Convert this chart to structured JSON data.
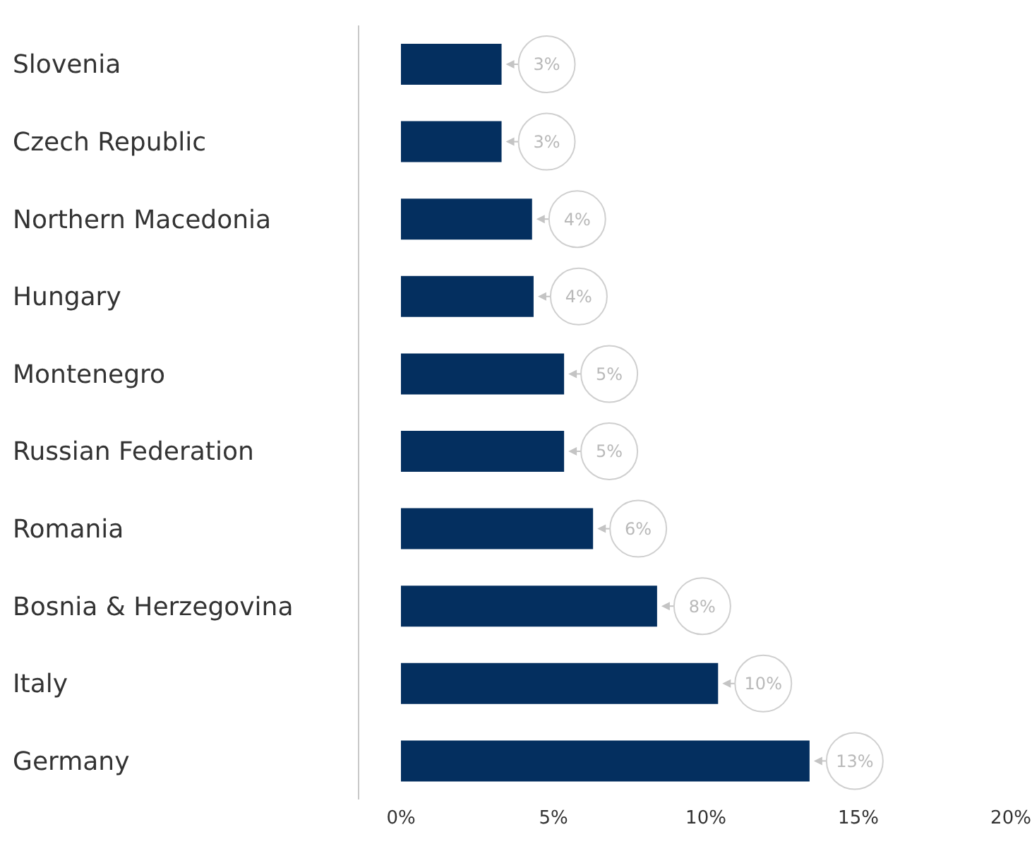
{
  "chart_data": {
    "type": "bar",
    "orientation": "horizontal",
    "categories": [
      "Slovenia",
      "Czech Republic",
      "Northern Macedonia",
      "Hungary",
      "Montenegro",
      "Russian Federation",
      "Romania",
      "Bosnia & Herzegovina",
      "Italy",
      "Germany"
    ],
    "values": [
      3.3,
      3.3,
      4.3,
      4.35,
      5.35,
      5.35,
      6.3,
      8.4,
      10.4,
      13.4
    ],
    "value_labels": [
      "3%",
      "3%",
      "4%",
      "4%",
      "5%",
      "5%",
      "6%",
      "8%",
      "10%",
      "13%"
    ],
    "color": "#042f5f",
    "xlim": [
      0,
      20
    ],
    "xticks": [
      {
        "value": 0,
        "label": "0%"
      },
      {
        "value": 5,
        "label": "5%"
      },
      {
        "value": 10,
        "label": "10%"
      },
      {
        "value": 15,
        "label": "15%"
      },
      {
        "value": 20,
        "label": "20%"
      }
    ]
  }
}
